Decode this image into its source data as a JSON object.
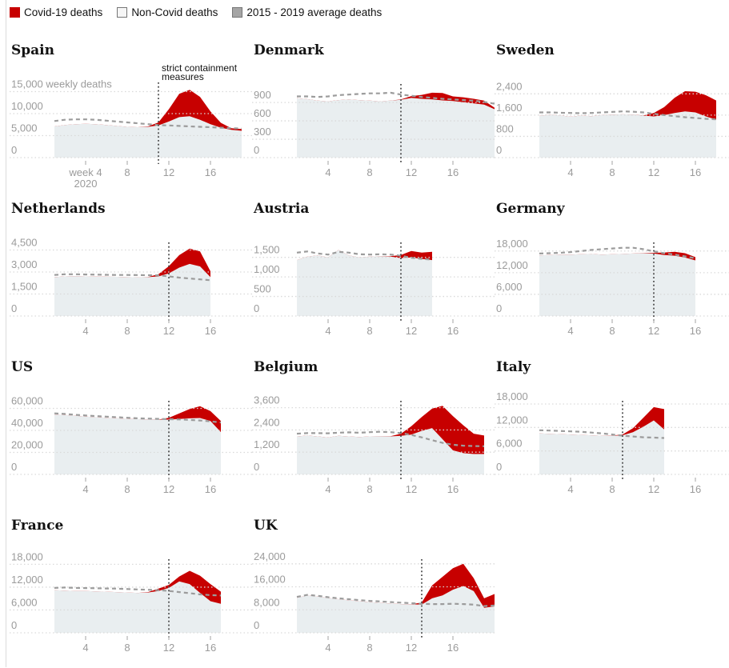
{
  "legend": {
    "items": [
      {
        "label": "Covid-19 deaths",
        "swatch": "covid"
      },
      {
        "label": "Non-Covid deaths",
        "swatch": "noncovid"
      },
      {
        "label": "2015 - 2019 average deaths",
        "swatch": "average"
      }
    ]
  },
  "colors": {
    "covid_fill": "#c70000",
    "noncovid_fill": "#e9eef0",
    "average_line": "#9c9c9c",
    "gridline": "#d9d9d9",
    "tick": "#bdbdbd",
    "axis_text": "#9b9b9b",
    "vertical_line": "#444444",
    "annotation_text": "#121212"
  },
  "chart_data": [
    {
      "type": "area",
      "title": "Spain",
      "unit": "weekly deaths",
      "x": [
        1,
        2,
        3,
        4,
        5,
        6,
        7,
        8,
        9,
        10,
        11,
        12,
        13,
        14,
        15,
        16,
        17,
        18,
        19
      ],
      "x_ticks": [
        4,
        8,
        12,
        16
      ],
      "x_tick_labels": [
        "week 4",
        "8",
        "12",
        "16"
      ],
      "x_sub_label": "2020",
      "y_ticks": [
        0,
        5000,
        10000,
        15000
      ],
      "y_tick_labels": [
        "0",
        "5,000",
        "10,000",
        "15,000 weekly deaths"
      ],
      "ylim": [
        0,
        16000
      ],
      "containment_week": 11,
      "annotation_lines": [
        "strict containment",
        "measures"
      ],
      "series": {
        "average": [
          8300,
          8600,
          8700,
          8700,
          8600,
          8400,
          8200,
          8000,
          7800,
          7600,
          7400,
          7300,
          7200,
          7100,
          7000,
          6900,
          6800,
          6700,
          6600
        ],
        "non_covid": [
          7100,
          7400,
          7600,
          7700,
          7600,
          7400,
          7200,
          7000,
          6900,
          7000,
          7300,
          8200,
          9200,
          9400,
          8600,
          7600,
          6800,
          6300,
          6100
        ],
        "total": [
          7100,
          7400,
          7600,
          7700,
          7600,
          7400,
          7200,
          7000,
          6900,
          7100,
          8000,
          11000,
          14500,
          15400,
          13800,
          10500,
          7900,
          6700,
          6500
        ]
      }
    },
    {
      "type": "area",
      "title": "Denmark",
      "x": [
        1,
        2,
        3,
        4,
        5,
        6,
        7,
        8,
        9,
        10,
        11,
        12,
        13,
        14,
        15,
        16,
        17,
        18,
        19,
        20
      ],
      "x_ticks": [
        4,
        8,
        12,
        16
      ],
      "x_tick_labels": [
        "4",
        "8",
        "12",
        "16"
      ],
      "y_ticks": [
        0,
        300,
        600,
        900
      ],
      "y_tick_labels": [
        "0",
        "300",
        "600",
        "900"
      ],
      "ylim": [
        0,
        1150
      ],
      "containment_week": 11,
      "series": {
        "average": [
          1000,
          1000,
          990,
          1000,
          1020,
          1030,
          1040,
          1050,
          1050,
          1060,
          1030,
          1010,
          990,
          975,
          960,
          950,
          940,
          930,
          910,
          880
        ],
        "non_covid": [
          970,
          955,
          930,
          920,
          940,
          950,
          940,
          930,
          920,
          930,
          945,
          975,
          960,
          950,
          935,
          925,
          905,
          885,
          865,
          790
        ],
        "total": [
          970,
          955,
          930,
          920,
          940,
          950,
          940,
          930,
          920,
          930,
          950,
          1005,
          1025,
          1060,
          1055,
          1000,
          985,
          960,
          930,
          815
        ]
      }
    },
    {
      "type": "area",
      "title": "Sweden",
      "x": [
        1,
        2,
        3,
        4,
        5,
        6,
        7,
        8,
        9,
        10,
        11,
        12,
        13,
        14,
        15,
        16,
        17,
        18
      ],
      "x_ticks": [
        4,
        8,
        12,
        16
      ],
      "x_tick_labels": [
        "4",
        "8",
        "12",
        "16"
      ],
      "y_ticks": [
        0,
        800,
        1600,
        2400
      ],
      "y_tick_labels": [
        "0",
        "800",
        "1,600",
        "2,400"
      ],
      "ylim": [
        0,
        2650
      ],
      "containment_week": null,
      "series": {
        "average": [
          1700,
          1700,
          1690,
          1680,
          1670,
          1680,
          1700,
          1720,
          1740,
          1730,
          1700,
          1650,
          1600,
          1560,
          1520,
          1490,
          1460,
          1440
        ],
        "non_covid": [
          1570,
          1620,
          1590,
          1540,
          1580,
          1560,
          1600,
          1620,
          1630,
          1620,
          1580,
          1550,
          1600,
          1680,
          1740,
          1700,
          1550,
          1430
        ],
        "total": [
          1570,
          1620,
          1590,
          1540,
          1580,
          1560,
          1600,
          1620,
          1630,
          1620,
          1590,
          1680,
          1900,
          2250,
          2500,
          2480,
          2350,
          2150
        ]
      }
    },
    {
      "type": "area",
      "title": "Netherlands",
      "x": [
        1,
        2,
        3,
        4,
        5,
        6,
        7,
        8,
        9,
        10,
        11,
        12,
        13,
        14,
        15,
        16
      ],
      "x_ticks": [
        4,
        8,
        12,
        16
      ],
      "x_tick_labels": [
        "4",
        "8",
        "12",
        "16"
      ],
      "y_ticks": [
        0,
        1500,
        3000,
        4500
      ],
      "y_tick_labels": [
        "0",
        "1,500",
        "3,000",
        "4,500"
      ],
      "ylim": [
        0,
        4800
      ],
      "containment_week": 12,
      "series": {
        "average": [
          2800,
          2850,
          2850,
          2830,
          2820,
          2810,
          2800,
          2800,
          2790,
          2780,
          2770,
          2700,
          2620,
          2560,
          2500,
          2440
        ],
        "non_covid": [
          2650,
          2700,
          2720,
          2700,
          2690,
          2680,
          2670,
          2650,
          2640,
          2650,
          2700,
          2900,
          3300,
          3550,
          3380,
          2650
        ],
        "total": [
          2650,
          2700,
          2720,
          2700,
          2690,
          2680,
          2670,
          2650,
          2640,
          2660,
          2850,
          3400,
          4150,
          4600,
          4400,
          3050
        ]
      }
    },
    {
      "type": "area",
      "title": "Austria",
      "x": [
        1,
        2,
        3,
        4,
        5,
        6,
        7,
        8,
        9,
        10,
        11,
        12,
        13,
        14
      ],
      "x_ticks": [
        4,
        8,
        12,
        16
      ],
      "x_tick_labels": [
        "4",
        "8",
        "12",
        "16"
      ],
      "y_ticks": [
        0,
        500,
        1000,
        1500
      ],
      "y_tick_labels": [
        "0",
        "500",
        "1,000",
        "1,500"
      ],
      "ylim": [
        0,
        1800
      ],
      "containment_week": 11,
      "series": {
        "average": [
          1620,
          1650,
          1600,
          1570,
          1640,
          1620,
          1580,
          1570,
          1580,
          1570,
          1540,
          1490,
          1460,
          1440
        ],
        "non_covid": [
          1430,
          1520,
          1550,
          1500,
          1690,
          1550,
          1500,
          1520,
          1530,
          1520,
          1480,
          1500,
          1460,
          1430
        ],
        "total": [
          1430,
          1520,
          1550,
          1500,
          1690,
          1550,
          1500,
          1520,
          1530,
          1530,
          1560,
          1660,
          1620,
          1640
        ]
      }
    },
    {
      "type": "area",
      "title": "Germany",
      "x": [
        1,
        2,
        3,
        4,
        5,
        6,
        7,
        8,
        9,
        10,
        11,
        12,
        13,
        14,
        15,
        16
      ],
      "x_ticks": [
        4,
        8,
        12,
        16
      ],
      "x_tick_labels": [
        "4",
        "8",
        "12",
        "16"
      ],
      "y_ticks": [
        0,
        6000,
        12000,
        18000
      ],
      "y_tick_labels": [
        "0",
        "6,000",
        "12,000",
        "18,000"
      ],
      "ylim": [
        0,
        19500
      ],
      "containment_week": 12,
      "series": {
        "average": [
          17300,
          17400,
          17500,
          17700,
          18000,
          18300,
          18500,
          18700,
          18900,
          18900,
          18500,
          17900,
          17400,
          17000,
          16500,
          16000
        ],
        "non_covid": [
          16800,
          16900,
          17000,
          17000,
          17100,
          17200,
          17000,
          17100,
          17200,
          17300,
          17400,
          17300,
          16900,
          16700,
          16200,
          15400
        ],
        "total": [
          16800,
          16900,
          17000,
          17000,
          17100,
          17200,
          17000,
          17100,
          17200,
          17300,
          17450,
          17500,
          17600,
          17800,
          17400,
          16300
        ]
      }
    },
    {
      "type": "area",
      "title": "US",
      "x": [
        1,
        2,
        3,
        4,
        5,
        6,
        7,
        8,
        9,
        10,
        11,
        12,
        13,
        14,
        15,
        16,
        17
      ],
      "x_ticks": [
        4,
        8,
        12,
        16
      ],
      "x_tick_labels": [
        "4",
        "8",
        "12",
        "16"
      ],
      "y_ticks": [
        0,
        20000,
        40000,
        60000
      ],
      "y_tick_labels": [
        "0",
        "20,000",
        "40,000",
        "60,000"
      ],
      "ylim": [
        0,
        64000
      ],
      "containment_week": 12,
      "series": {
        "average": [
          55500,
          55000,
          54200,
          53600,
          53000,
          52500,
          52000,
          51500,
          51000,
          50800,
          50500,
          50200,
          50000,
          49500,
          49000,
          48200,
          47200
        ],
        "non_covid": [
          54500,
          54000,
          53200,
          52500,
          52000,
          51500,
          51000,
          50500,
          50200,
          50000,
          49800,
          49800,
          50300,
          51000,
          51300,
          48500,
          38500
        ],
        "total": [
          54500,
          54000,
          53200,
          52500,
          52000,
          51500,
          51000,
          50500,
          50200,
          50000,
          49900,
          51500,
          55500,
          59500,
          62000,
          57500,
          48500
        ]
      }
    },
    {
      "type": "area",
      "title": "Belgium",
      "x": [
        1,
        2,
        3,
        4,
        5,
        6,
        7,
        8,
        9,
        10,
        11,
        12,
        13,
        14,
        15,
        16,
        17,
        18,
        19
      ],
      "x_ticks": [
        4,
        8,
        12,
        16
      ],
      "x_tick_labels": [
        "4",
        "8",
        "12",
        "16"
      ],
      "y_ticks": [
        0,
        1200,
        2400,
        3600
      ],
      "y_tick_labels": [
        "0",
        "1,200",
        "2,400",
        "3,600"
      ],
      "ylim": [
        0,
        3800
      ],
      "containment_week": 11,
      "series": {
        "average": [
          2200,
          2230,
          2230,
          2220,
          2250,
          2270,
          2250,
          2280,
          2300,
          2280,
          2230,
          2130,
          2000,
          1850,
          1700,
          1600,
          1550,
          1530,
          1520
        ],
        "non_covid": [
          2050,
          2100,
          2050,
          2000,
          2080,
          2050,
          2020,
          2050,
          2060,
          2050,
          2080,
          2150,
          2350,
          2500,
          1900,
          1300,
          1150,
          1100,
          1100
        ],
        "total": [
          2050,
          2100,
          2050,
          2000,
          2080,
          2050,
          2020,
          2050,
          2060,
          2060,
          2200,
          2600,
          3100,
          3550,
          3700,
          3150,
          2650,
          2200,
          2100
        ]
      }
    },
    {
      "type": "area",
      "title": "Italy",
      "x": [
        1,
        2,
        3,
        4,
        5,
        6,
        7,
        8,
        9,
        10,
        11,
        12,
        13
      ],
      "x_ticks": [
        4,
        8,
        12,
        16
      ],
      "x_tick_labels": [
        "4",
        "8",
        "12",
        "16"
      ],
      "y_ticks": [
        0,
        6000,
        12000,
        18000
      ],
      "y_tick_labels": [
        "0",
        "6,000",
        "12,000",
        "18,000"
      ],
      "ylim": [
        0,
        18000
      ],
      "containment_week": 9,
      "series": {
        "average": [
          11300,
          11200,
          11100,
          11000,
          10900,
          10700,
          10500,
          10200,
          9900,
          9700,
          9500,
          9400,
          9300
        ],
        "non_covid": [
          10500,
          10400,
          10300,
          10200,
          10100,
          10000,
          9900,
          9900,
          10000,
          10800,
          12200,
          13800,
          11500
        ],
        "total": [
          10500,
          10400,
          10300,
          10200,
          10100,
          10000,
          9900,
          9950,
          10200,
          11800,
          14500,
          17200,
          16700
        ]
      }
    },
    {
      "type": "area",
      "title": "France",
      "x": [
        1,
        2,
        3,
        4,
        5,
        6,
        7,
        8,
        9,
        10,
        11,
        12,
        13,
        14,
        15,
        16,
        17
      ],
      "x_ticks": [
        4,
        8,
        12,
        16
      ],
      "x_tick_labels": [
        "4",
        "8",
        "12",
        "16"
      ],
      "y_ticks": [
        0,
        6000,
        12000,
        18000
      ],
      "y_tick_labels": [
        "0",
        "6,000",
        "12,000",
        "18,000"
      ],
      "ylim": [
        0,
        18500
      ],
      "containment_week": 12,
      "series": {
        "average": [
          11800,
          11900,
          11800,
          11750,
          11700,
          11650,
          11600,
          11500,
          11400,
          11300,
          11200,
          11000,
          10700,
          10400,
          10100,
          9900,
          9800
        ],
        "non_covid": [
          11200,
          11100,
          11000,
          11000,
          10900,
          10800,
          10700,
          10600,
          10500,
          10600,
          11000,
          11800,
          13500,
          12800,
          10500,
          8300,
          7600
        ],
        "total": [
          11200,
          11100,
          11000,
          11000,
          10900,
          10800,
          10700,
          10600,
          10500,
          10700,
          11600,
          12600,
          14800,
          16300,
          15000,
          12800,
          10800
        ]
      }
    },
    {
      "type": "area",
      "title": "UK",
      "x": [
        1,
        2,
        3,
        4,
        5,
        6,
        7,
        8,
        9,
        10,
        11,
        12,
        13,
        14,
        15,
        16,
        17,
        18,
        19,
        20
      ],
      "x_ticks": [
        4,
        8,
        12,
        16
      ],
      "x_tick_labels": [
        "4",
        "8",
        "12",
        "16"
      ],
      "y_ticks": [
        0,
        8000,
        16000,
        24000
      ],
      "y_tick_labels": [
        "0",
        "8,000",
        "16,000",
        "24,000"
      ],
      "ylim": [
        0,
        24500
      ],
      "containment_week": 13,
      "series": {
        "average": [
          12500,
          13200,
          12900,
          12400,
          12000,
          11700,
          11400,
          11100,
          10900,
          10700,
          10500,
          10300,
          10100,
          10000,
          10000,
          10100,
          10000,
          9800,
          9300,
          9500
        ],
        "non_covid": [
          12200,
          13000,
          12600,
          12100,
          11700,
          11300,
          11000,
          10700,
          10400,
          10200,
          10000,
          9900,
          9800,
          12000,
          13000,
          15000,
          16300,
          14500,
          8700,
          9200
        ],
        "total": [
          12200,
          13000,
          12600,
          12100,
          11700,
          11300,
          11000,
          10700,
          10400,
          10200,
          10000,
          9950,
          10500,
          16500,
          19500,
          22500,
          24000,
          19000,
          12000,
          13500
        ]
      }
    }
  ]
}
